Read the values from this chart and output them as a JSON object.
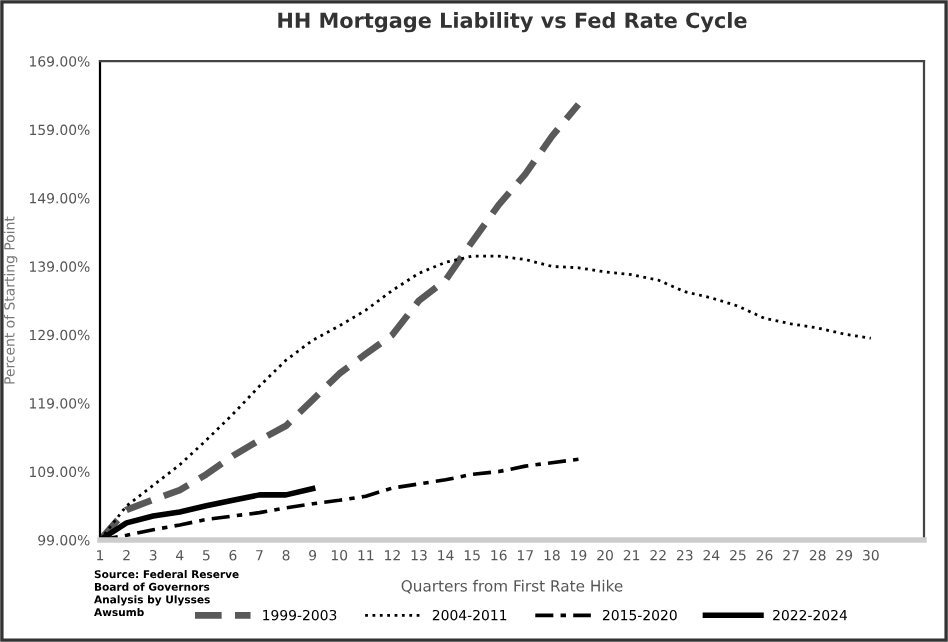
{
  "chart_data": {
    "type": "line",
    "title": "HH Mortgage Liability vs Fed Rate Cycle",
    "xlabel": "Quarters from First Rate Hike",
    "ylabel": "Percent of Starting Point",
    "annotations": [
      "Source: Federal Reserve\nBoard of Governors\nAnalysis by Ulysses\nAwsumb"
    ],
    "series": [
      {
        "name": "1999-2003",
        "color": "#595959",
        "line_style": "dashed",
        "x": [
          1,
          2,
          3,
          4,
          5,
          6,
          7,
          8,
          9,
          10,
          11,
          12,
          13,
          14,
          15,
          16,
          17,
          18,
          19
        ],
        "values": [
          99,
          103.4,
          104.9,
          106.3,
          108.6,
          111.3,
          113.6,
          115.7,
          119.5,
          123.3,
          126.2,
          129,
          134,
          137,
          142.6,
          148,
          152.5,
          158,
          162.7
        ]
      },
      {
        "name": "2004-2011",
        "color": "#000000",
        "line_style": "dotted",
        "x": [
          1,
          2,
          3,
          4,
          5,
          6,
          7,
          8,
          9,
          10,
          11,
          12,
          13,
          14,
          15,
          16,
          17,
          18,
          19,
          20,
          21,
          22,
          23,
          24,
          25,
          26,
          27,
          28,
          29,
          30
        ],
        "values": [
          99,
          104,
          107,
          110,
          113.6,
          117.4,
          121.5,
          125.3,
          128.2,
          130.3,
          132.6,
          135.5,
          138,
          139.6,
          140.5,
          140.5,
          140,
          139,
          138.8,
          138.2,
          137.8,
          137,
          135.3,
          134.4,
          133.2,
          131.4,
          130.6,
          130,
          129.1,
          128.5
        ]
      },
      {
        "name": "2015-2020",
        "color": "#000000",
        "line_style": "dashdot",
        "x": [
          1,
          2,
          3,
          4,
          5,
          6,
          7,
          8,
          9,
          10,
          11,
          12,
          13,
          14,
          15,
          16,
          17,
          18,
          19
        ],
        "values": [
          99,
          99.7,
          100.5,
          101.2,
          102,
          102.5,
          103,
          103.7,
          104.3,
          104.8,
          105.4,
          106.6,
          107.2,
          107.8,
          108.6,
          109,
          109.8,
          110.3,
          110.8
        ]
      },
      {
        "name": "2022-2024",
        "color": "#000000",
        "line_style": "solid",
        "x": [
          1,
          2,
          3,
          4,
          5,
          6,
          7,
          8,
          9
        ],
        "values": [
          99,
          101.5,
          102.5,
          103.1,
          104,
          104.8,
          105.6,
          105.6,
          106.5
        ]
      }
    ],
    "xlim": [
      1,
      32
    ],
    "xticks": [
      1,
      2,
      3,
      4,
      5,
      6,
      7,
      8,
      9,
      10,
      11,
      12,
      13,
      14,
      15,
      16,
      17,
      18,
      19,
      20,
      21,
      22,
      23,
      24,
      25,
      26,
      27,
      28,
      29,
      30
    ],
    "ylim": [
      99,
      169
    ],
    "yticks": [
      {
        "value": 99,
        "label": "99.00%"
      },
      {
        "value": 109,
        "label": "109.00%"
      },
      {
        "value": 119,
        "label": "119.00%"
      },
      {
        "value": 129,
        "label": "129.00%"
      },
      {
        "value": 139,
        "label": "139.00%"
      },
      {
        "value": 149,
        "label": "149.00%"
      },
      {
        "value": 159,
        "label": "159.00%"
      },
      {
        "value": 169,
        "label": "169.00%"
      }
    ],
    "grid": false,
    "legend": "bottom",
    "marker": "none"
  }
}
